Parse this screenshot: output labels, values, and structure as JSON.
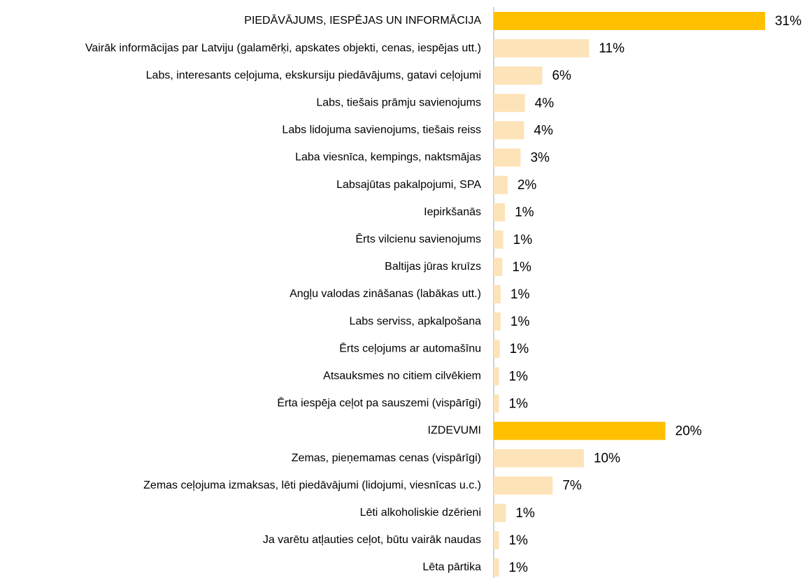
{
  "chart_data": {
    "type": "hbar",
    "categories": [
      "PIEDĀVĀJUMS, IESPĒJAS UN INFORMĀCIJA",
      "Vairāk informācijas par Latviju (galamērķi, apskates objekti, cenas, iespējas utt.)",
      "Labs, interesants ceļojuma, ekskursiju piedāvājums, gatavi ceļojumi",
      "Labs, tiešais prāmju savienojums",
      "Labs lidojuma savienojums, tiešais reiss",
      "Laba viesnīca, kempings, naktsmājas",
      "Labsajūtas pakalpojumi, SPA",
      "Iepirkšanās",
      "Ērts vilcienu savienojums",
      "Baltijas jūras kruīzs",
      "Angļu valodas zināšanas (labākas utt.)",
      "Labs serviss, apkalpošana",
      "Ērts ceļojums ar automašīnu",
      "Atsauksmes no citiem cilvēkiem",
      "Ērta iespēja ceļot pa sauszemi (vispārīgi)",
      "IZDEVUMI",
      "Zemas, pieņemamas cenas (vispārīgi)",
      "Zemas ceļojuma izmaksas, lēti piedāvājumi (lidojumi, viesnīcas u.c.)",
      "Lēti alkoholiskie dzērieni",
      "Ja varētu atļauties ceļot, būtu vairāk naudas",
      "Lēta pārtika"
    ],
    "values": [
      31.3,
      11.0,
      5.6,
      3.6,
      3.5,
      3.1,
      1.6,
      1.3,
      1.1,
      1.0,
      0.8,
      0.8,
      0.7,
      0.6,
      0.6,
      19.8,
      10.4,
      6.8,
      1.4,
      0.6,
      0.6
    ],
    "value_labels": [
      "31%",
      "11%",
      "6%",
      "4%",
      "4%",
      "3%",
      "2%",
      "1%",
      "1%",
      "1%",
      "1%",
      "1%",
      "1%",
      "1%",
      "1%",
      "20%",
      "10%",
      "7%",
      "1%",
      "1%",
      "1%"
    ],
    "colors": [
      "#ffc000",
      "#fde3b8",
      "#fde3b8",
      "#fde3b8",
      "#fde3b8",
      "#fde3b8",
      "#fde3b8",
      "#fde3b8",
      "#fde3b8",
      "#fde3b8",
      "#fde3b8",
      "#fde3b8",
      "#fde3b8",
      "#fde3b8",
      "#fde3b8",
      "#ffc000",
      "#fde3b8",
      "#fde3b8",
      "#fde3b8",
      "#fde3b8",
      "#fde3b8"
    ],
    "xlim": [
      0,
      35
    ]
  }
}
